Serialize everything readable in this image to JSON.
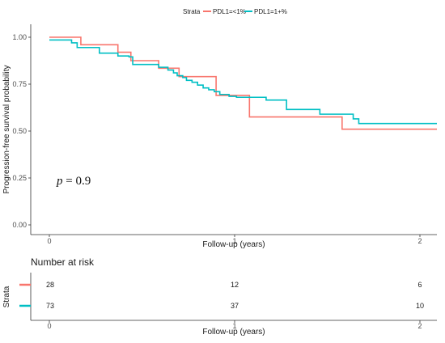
{
  "chart_data": [
    {
      "type": "line",
      "subtype": "kaplan-meier",
      "title": "",
      "xlabel": "Follow-up (years)",
      "ylabel": "Progression-free survival probability",
      "xlim": [
        -0.1,
        2.1
      ],
      "ylim": [
        0,
        1
      ],
      "x_ticks": [
        "0",
        "1",
        "2"
      ],
      "x_tick_values": [
        0,
        1,
        2
      ],
      "y_ticks": [
        "0.00",
        "0.25",
        "0.50",
        "0.75",
        "1.00"
      ],
      "y_tick_values": [
        0,
        0.25,
        0.5,
        0.75,
        1.0
      ],
      "grid": false,
      "annotation": {
        "text_italic": "p",
        "text_rest": " = 0.9"
      },
      "legend": {
        "position": "top",
        "title": "Strata",
        "entries": [
          "PDL1=<1%",
          "PDL1=1+%"
        ]
      },
      "series": [
        {
          "name": "PDL1=<1%",
          "color": "#F8766D",
          "x": [
            0,
            0.17,
            0.37,
            0.44,
            0.59,
            0.7,
            0.88,
            0.9,
            1.02,
            1.08,
            1.58,
            2.1
          ],
          "y": [
            1.0,
            0.96,
            0.92,
            0.875,
            0.835,
            0.79,
            0.79,
            0.69,
            0.69,
            0.575,
            0.51,
            0.51
          ]
        },
        {
          "name": "PDL1=1+%",
          "color": "#00BFC4",
          "x": [
            0,
            0.1,
            0.12,
            0.15,
            0.27,
            0.37,
            0.43,
            0.45,
            0.59,
            0.64,
            0.67,
            0.69,
            0.72,
            0.74,
            0.77,
            0.8,
            0.83,
            0.86,
            0.89,
            0.92,
            0.97,
            1.01,
            1.17,
            1.28,
            1.46,
            1.62,
            1.64,
            1.67,
            2.1
          ],
          "y": [
            0.985,
            0.985,
            0.97,
            0.945,
            0.915,
            0.9,
            0.895,
            0.855,
            0.84,
            0.825,
            0.81,
            0.795,
            0.785,
            0.77,
            0.76,
            0.745,
            0.73,
            0.72,
            0.71,
            0.695,
            0.685,
            0.68,
            0.665,
            0.615,
            0.59,
            0.59,
            0.565,
            0.54,
            0.54
          ]
        }
      ]
    },
    {
      "type": "table",
      "title": "Number at risk",
      "ylabel": "Strata",
      "xlabel": "Follow-up (years)",
      "x_ticks": [
        "0",
        "1",
        "2"
      ],
      "x_tick_values": [
        0,
        1,
        2
      ],
      "rows": [
        {
          "color": "#F8766D",
          "values": [
            "28",
            "12",
            "6"
          ]
        },
        {
          "color": "#00BFC4",
          "values": [
            "73",
            "37",
            "10"
          ]
        }
      ]
    }
  ]
}
